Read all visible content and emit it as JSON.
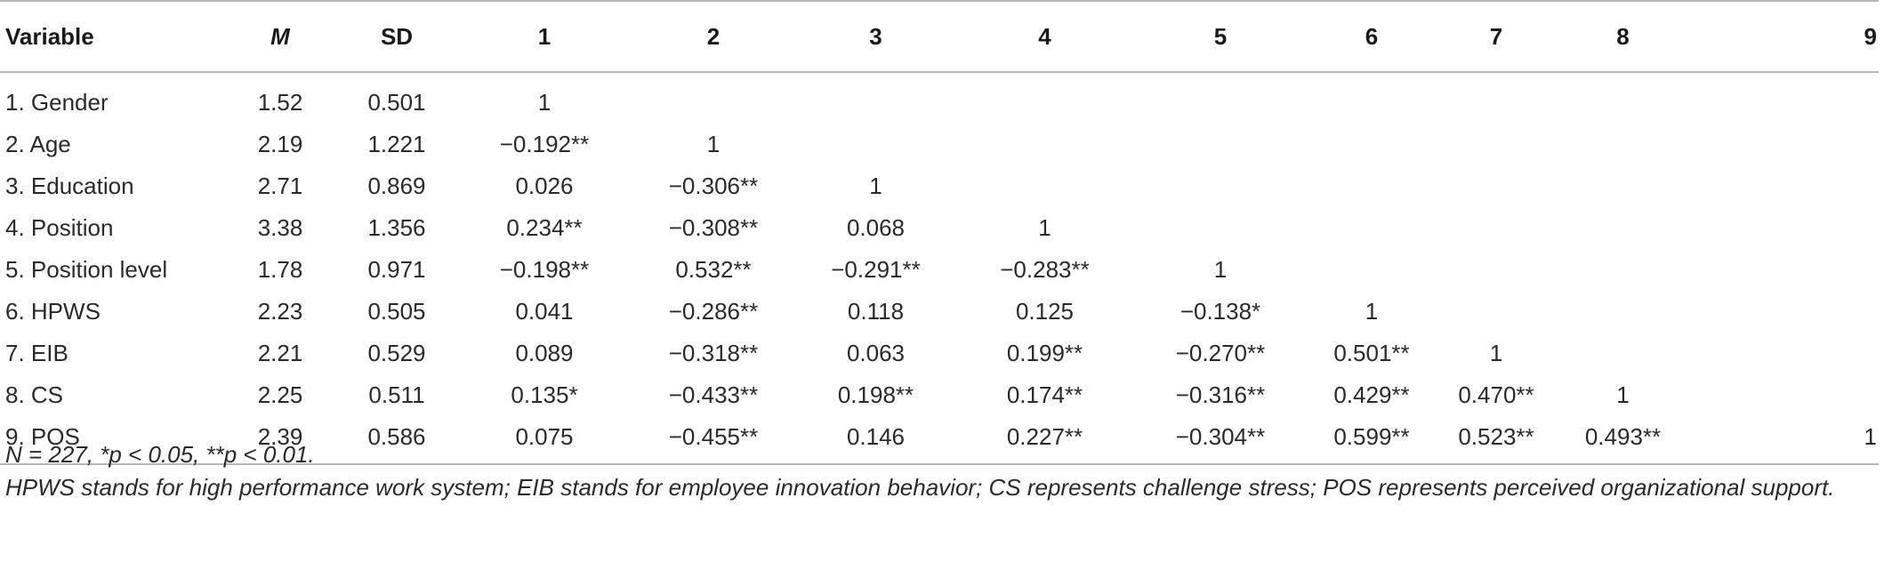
{
  "table": {
    "headers": [
      "Variable",
      "M",
      "SD",
      "1",
      "2",
      "3",
      "4",
      "5",
      "6",
      "7",
      "8",
      "9"
    ],
    "rows": [
      [
        "1. Gender",
        "1.52",
        "0.501",
        "1",
        "",
        "",
        "",
        "",
        "",
        "",
        "",
        ""
      ],
      [
        "2. Age",
        "2.19",
        "1.221",
        "−0.192**",
        "1",
        "",
        "",
        "",
        "",
        "",
        "",
        ""
      ],
      [
        "3. Education",
        "2.71",
        "0.869",
        "0.026",
        "−0.306**",
        "1",
        "",
        "",
        "",
        "",
        "",
        ""
      ],
      [
        "4. Position",
        "3.38",
        "1.356",
        "0.234**",
        "−0.308**",
        "0.068",
        "1",
        "",
        "",
        "",
        "",
        ""
      ],
      [
        "5. Position level",
        "1.78",
        "0.971",
        "−0.198**",
        "0.532**",
        "−0.291**",
        "−0.283**",
        "1",
        "",
        "",
        "",
        ""
      ],
      [
        "6. HPWS",
        "2.23",
        "0.505",
        "0.041",
        "−0.286**",
        "0.118",
        "0.125",
        "−0.138*",
        "1",
        "",
        "",
        ""
      ],
      [
        "7. EIB",
        "2.21",
        "0.529",
        "0.089",
        "−0.318**",
        "0.063",
        "0.199**",
        "−0.270**",
        "0.501**",
        "1",
        "",
        ""
      ],
      [
        "8. CS",
        "2.25",
        "0.511",
        "0.135*",
        "−0.433**",
        "0.198**",
        "0.174**",
        "−0.316**",
        "0.429**",
        "0.470**",
        "1",
        ""
      ],
      [
        "9. POS",
        "2.39",
        "0.586",
        "0.075",
        "−0.455**",
        "0.146",
        "0.227**",
        "−0.304**",
        "0.599**",
        "0.523**",
        "0.493**",
        "1"
      ]
    ]
  },
  "notes": {
    "line1": "N = 227, *p < 0.05, **p < 0.01.",
    "line2": "HPWS stands for high performance work system; EIB stands for employee innovation behavior; CS represents challenge stress; POS represents perceived organizational support."
  }
}
